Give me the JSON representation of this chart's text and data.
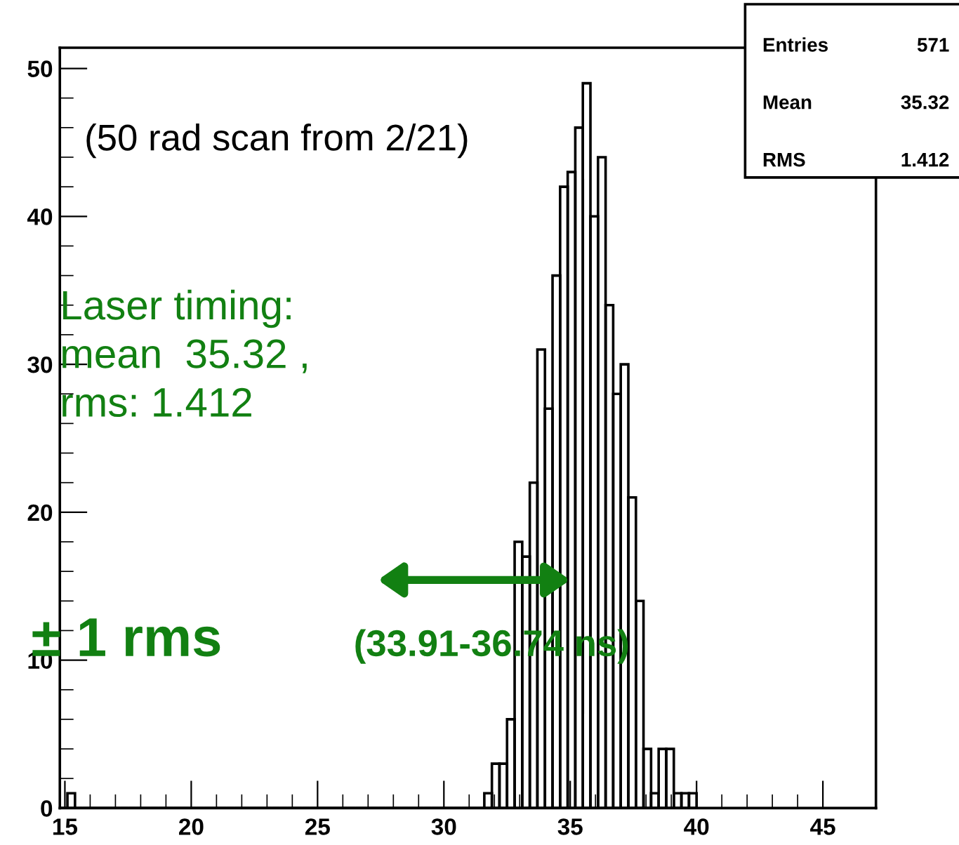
{
  "chart_data": {
    "type": "histogram",
    "color": "#000000",
    "bins": [
      14.8,
      15.1,
      15.4,
      15.7,
      16.0,
      16.3,
      16.6,
      16.9,
      17.2,
      17.5,
      17.8,
      18.1,
      18.4,
      18.7,
      19.0,
      19.3,
      19.6,
      19.9,
      20.2,
      20.5,
      20.8,
      21.1,
      21.4,
      21.7,
      22.0,
      22.3,
      22.6,
      22.9,
      23.2,
      23.5,
      23.8,
      24.1,
      24.4,
      24.7,
      25.0,
      25.3,
      25.6,
      25.9,
      26.2,
      26.5,
      26.8,
      27.1,
      27.4,
      27.7,
      28.0,
      28.3,
      28.6,
      28.9,
      29.2,
      29.5,
      29.8,
      30.1,
      30.4,
      30.7,
      31.0,
      31.3,
      31.6,
      31.9,
      32.2,
      32.5,
      32.8,
      33.1,
      33.4,
      33.7,
      34.0,
      34.3,
      34.6,
      34.9,
      35.2,
      35.5,
      35.8,
      36.1,
      36.4,
      36.7,
      37.0,
      37.3,
      37.6,
      37.9,
      38.2,
      38.5,
      38.8,
      39.1,
      39.4,
      39.7,
      40.0
    ],
    "values": [
      0,
      1,
      0,
      0,
      0,
      0,
      0,
      0,
      0,
      0,
      0,
      0,
      0,
      0,
      0,
      0,
      0,
      0,
      0,
      0,
      0,
      0,
      0,
      0,
      0,
      0,
      0,
      0,
      0,
      0,
      0,
      0,
      0,
      0,
      0,
      0,
      0,
      0,
      0,
      0,
      0,
      0,
      0,
      0,
      0,
      0,
      0,
      0,
      0,
      0,
      0,
      0,
      0,
      0,
      0,
      0,
      1,
      3,
      3,
      6,
      18,
      17,
      22,
      31,
      27,
      36,
      42,
      43,
      46,
      49,
      40,
      44,
      34,
      28,
      30,
      21,
      14,
      4,
      1,
      4,
      4,
      1,
      1,
      1
    ],
    "xlim": [
      14.8,
      47.1
    ],
    "xticks": [
      15,
      20,
      25,
      30,
      35,
      40,
      45
    ],
    "ylim": [
      0,
      51.4
    ],
    "yticks": [
      0,
      10,
      20,
      30,
      40,
      50
    ],
    "grid": false,
    "annotations": [
      "Entries 571",
      "Mean 35.32",
      "RMS 1.412",
      "(50 rad scan from 2/21)",
      "Laser timing:\nmean  35.32 ,\nrms: 1.412",
      "± 1 rms",
      "(33.91-36.74 ns)"
    ]
  }
}
